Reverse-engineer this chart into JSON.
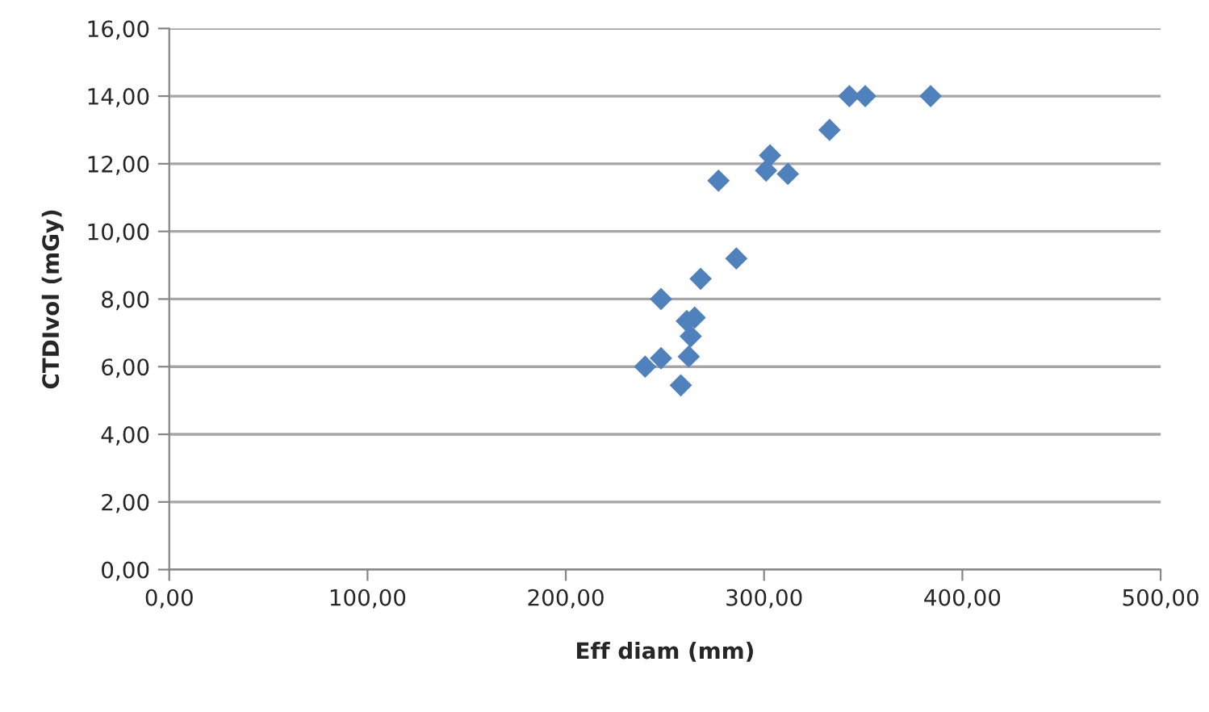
{
  "chart_data": {
    "type": "scatter",
    "xlabel": "Eff diam (mm)",
    "ylabel": "CTDIvol (mGy)",
    "series": [
      {
        "color": "#4f81bd",
        "x": [
          343,
          351,
          384,
          333,
          303,
          301,
          312,
          277,
          286,
          268,
          248,
          261,
          265,
          263,
          262,
          258,
          248,
          240
        ],
        "values": [
          14.0,
          14.0,
          14.0,
          13.0,
          12.25,
          11.8,
          11.7,
          11.5,
          9.2,
          8.6,
          8.0,
          7.35,
          7.45,
          6.9,
          6.3,
          5.45,
          6.25,
          6.0
        ]
      }
    ],
    "marker": "diamond",
    "grid": "y",
    "xlim": [
      0,
      500
    ],
    "xticks": [
      {
        "value": 0,
        "label": "0,00"
      },
      {
        "value": 100,
        "label": "100,00"
      },
      {
        "value": 200,
        "label": "200,00"
      },
      {
        "value": 300,
        "label": "300,00"
      },
      {
        "value": 400,
        "label": "400,00"
      },
      {
        "value": 500,
        "label": "500,00"
      }
    ],
    "ylim": [
      0,
      16
    ],
    "yticks": [
      {
        "value": 0,
        "label": "0,00"
      },
      {
        "value": 2,
        "label": "2,00"
      },
      {
        "value": 4,
        "label": "4,00"
      },
      {
        "value": 6,
        "label": "6,00"
      },
      {
        "value": 8,
        "label": "8,00"
      },
      {
        "value": 10,
        "label": "10,00"
      },
      {
        "value": 12,
        "label": "12,00"
      },
      {
        "value": 14,
        "label": "14,00"
      },
      {
        "value": 16,
        "label": "16,00"
      }
    ]
  }
}
